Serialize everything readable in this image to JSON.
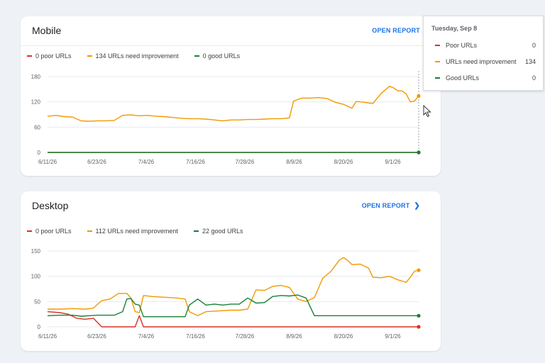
{
  "colors": {
    "poor": "#d93025",
    "improve": "#f29900",
    "good": "#188038",
    "link": "#1a73e8"
  },
  "mobile": {
    "title": "Mobile",
    "open_report": "OPEN REPORT",
    "legend": [
      "0 poor URLs",
      "134 URLs need improvement",
      "0 good URLs"
    ]
  },
  "desktop": {
    "title": "Desktop",
    "open_report": "OPEN REPORT",
    "legend": [
      "0 poor URLs",
      "112 URLs need improvement",
      "22 good URLs"
    ]
  },
  "tooltip": {
    "date": "Tuesday, Sep 8",
    "rows": [
      {
        "label": "Poor URLs",
        "value": "0"
      },
      {
        "label": "URLs need improvement",
        "value": "134"
      },
      {
        "label": "Good URLs",
        "value": "0"
      }
    ]
  },
  "chart_data": [
    {
      "type": "line",
      "title": "Mobile",
      "x_start": "2026-06-11",
      "x_end": "2026-09-08",
      "xticks": [
        "6/11/26",
        "6/23/26",
        "7/4/26",
        "7/16/26",
        "7/28/26",
        "8/9/26",
        "8/20/26",
        "9/1/26"
      ],
      "yticks": [
        0,
        60,
        120,
        180
      ],
      "ylim": [
        0,
        180
      ],
      "series": [
        {
          "name": "Poor URLs",
          "points": [
            [
              "2026-06-11",
              0
            ],
            [
              "2026-09-08",
              0
            ]
          ]
        },
        {
          "name": "URLs need improvement",
          "points": [
            [
              "2026-06-11",
              86
            ],
            [
              "2026-06-13",
              88
            ],
            [
              "2026-06-15",
              85
            ],
            [
              "2026-06-17",
              84
            ],
            [
              "2026-06-19",
              75
            ],
            [
              "2026-06-21",
              74
            ],
            [
              "2026-06-23",
              75
            ],
            [
              "2026-06-25",
              75
            ],
            [
              "2026-06-27",
              76
            ],
            [
              "2026-06-29",
              88
            ],
            [
              "2026-07-01",
              89
            ],
            [
              "2026-07-03",
              87
            ],
            [
              "2026-07-05",
              88
            ],
            [
              "2026-07-07",
              86
            ],
            [
              "2026-07-09",
              85
            ],
            [
              "2026-07-11",
              83
            ],
            [
              "2026-07-13",
              81
            ],
            [
              "2026-07-15",
              80
            ],
            [
              "2026-07-17",
              80
            ],
            [
              "2026-07-19",
              79
            ],
            [
              "2026-07-21",
              77
            ],
            [
              "2026-07-23",
              75
            ],
            [
              "2026-07-25",
              77
            ],
            [
              "2026-07-27",
              77
            ],
            [
              "2026-07-29",
              78
            ],
            [
              "2026-07-31",
              78
            ],
            [
              "2026-08-02",
              79
            ],
            [
              "2026-08-04",
              80
            ],
            [
              "2026-08-06",
              80
            ],
            [
              "2026-08-08",
              82
            ],
            [
              "2026-08-09",
              122
            ],
            [
              "2026-08-11",
              129
            ],
            [
              "2026-08-13",
              129
            ],
            [
              "2026-08-15",
              130
            ],
            [
              "2026-08-17",
              128
            ],
            [
              "2026-08-19",
              119
            ],
            [
              "2026-08-21",
              114
            ],
            [
              "2026-08-23",
              105
            ],
            [
              "2026-08-24",
              121
            ],
            [
              "2026-08-26",
              119
            ],
            [
              "2026-08-28",
              116
            ],
            [
              "2026-08-30",
              140
            ],
            [
              "2026-09-01",
              157
            ],
            [
              "2026-09-02",
              153
            ],
            [
              "2026-09-03",
              146
            ],
            [
              "2026-09-04",
              146
            ],
            [
              "2026-09-05",
              139
            ],
            [
              "2026-09-06",
              120
            ],
            [
              "2026-09-07",
              122
            ],
            [
              "2026-09-08",
              134
            ]
          ]
        },
        {
          "name": "Good URLs",
          "points": [
            [
              "2026-06-11",
              0
            ],
            [
              "2026-09-08",
              0
            ]
          ]
        }
      ]
    },
    {
      "type": "line",
      "title": "Desktop",
      "x_start": "2026-06-11",
      "x_end": "2026-09-08",
      "xticks": [
        "6/11/26",
        "6/23/26",
        "7/4/26",
        "7/16/26",
        "7/28/26",
        "8/9/26",
        "8/20/26",
        "9/1/26"
      ],
      "yticks": [
        0,
        50,
        100,
        150
      ],
      "ylim": [
        0,
        150
      ],
      "series": [
        {
          "name": "Poor URLs",
          "points": [
            [
              "2026-06-11",
              30
            ],
            [
              "2026-06-14",
              28
            ],
            [
              "2026-06-16",
              25
            ],
            [
              "2026-06-18",
              17
            ],
            [
              "2026-06-20",
              15
            ],
            [
              "2026-06-22",
              17
            ],
            [
              "2026-06-24",
              0
            ],
            [
              "2026-07-02",
              0
            ],
            [
              "2026-07-03",
              22
            ],
            [
              "2026-07-04",
              0
            ],
            [
              "2026-09-08",
              0
            ]
          ]
        },
        {
          "name": "URLs need improvement",
          "points": [
            [
              "2026-06-11",
              35
            ],
            [
              "2026-06-14",
              35
            ],
            [
              "2026-06-17",
              36
            ],
            [
              "2026-06-20",
              35
            ],
            [
              "2026-06-22",
              37
            ],
            [
              "2026-06-24",
              52
            ],
            [
              "2026-06-26",
              55
            ],
            [
              "2026-06-28",
              66
            ],
            [
              "2026-06-30",
              66
            ],
            [
              "2026-07-01",
              57
            ],
            [
              "2026-07-02",
              30
            ],
            [
              "2026-07-03",
              28
            ],
            [
              "2026-07-04",
              62
            ],
            [
              "2026-07-06",
              60
            ],
            [
              "2026-07-08",
              59
            ],
            [
              "2026-07-10",
              58
            ],
            [
              "2026-07-12",
              57
            ],
            [
              "2026-07-14",
              55
            ],
            [
              "2026-07-15",
              30
            ],
            [
              "2026-07-17",
              22
            ],
            [
              "2026-07-19",
              30
            ],
            [
              "2026-07-21",
              31
            ],
            [
              "2026-07-23",
              32
            ],
            [
              "2026-07-25",
              33
            ],
            [
              "2026-07-27",
              33
            ],
            [
              "2026-07-29",
              35
            ],
            [
              "2026-07-31",
              73
            ],
            [
              "2026-08-02",
              72
            ],
            [
              "2026-08-04",
              80
            ],
            [
              "2026-08-06",
              82
            ],
            [
              "2026-08-08",
              78
            ],
            [
              "2026-08-10",
              55
            ],
            [
              "2026-08-12",
              50
            ],
            [
              "2026-08-14",
              58
            ],
            [
              "2026-08-16",
              96
            ],
            [
              "2026-08-18",
              110
            ],
            [
              "2026-08-20",
              132
            ],
            [
              "2026-08-21",
              137
            ],
            [
              "2026-08-22",
              131
            ],
            [
              "2026-08-23",
              123
            ],
            [
              "2026-08-25",
              124
            ],
            [
              "2026-08-27",
              116
            ],
            [
              "2026-08-28",
              98
            ],
            [
              "2026-08-30",
              97
            ],
            [
              "2026-09-01",
              100
            ],
            [
              "2026-09-03",
              93
            ],
            [
              "2026-09-05",
              88
            ],
            [
              "2026-09-06",
              98
            ],
            [
              "2026-09-07",
              110
            ],
            [
              "2026-09-08",
              112
            ]
          ]
        },
        {
          "name": "Good URLs",
          "points": [
            [
              "2026-06-11",
              22
            ],
            [
              "2026-06-14",
              23
            ],
            [
              "2026-06-17",
              23
            ],
            [
              "2026-06-19",
              21
            ],
            [
              "2026-06-21",
              22
            ],
            [
              "2026-06-23",
              23
            ],
            [
              "2026-06-25",
              23
            ],
            [
              "2026-06-27",
              23
            ],
            [
              "2026-06-29",
              30
            ],
            [
              "2026-06-30",
              55
            ],
            [
              "2026-07-01",
              56
            ],
            [
              "2026-07-02",
              45
            ],
            [
              "2026-07-03",
              43
            ],
            [
              "2026-07-04",
              20
            ],
            [
              "2026-07-06",
              20
            ],
            [
              "2026-07-10",
              20
            ],
            [
              "2026-07-14",
              20
            ],
            [
              "2026-07-15",
              43
            ],
            [
              "2026-07-17",
              55
            ],
            [
              "2026-07-19",
              43
            ],
            [
              "2026-07-21",
              45
            ],
            [
              "2026-07-23",
              43
            ],
            [
              "2026-07-25",
              45
            ],
            [
              "2026-07-27",
              45
            ],
            [
              "2026-07-29",
              57
            ],
            [
              "2026-07-31",
              47
            ],
            [
              "2026-08-02",
              48
            ],
            [
              "2026-08-04",
              60
            ],
            [
              "2026-08-06",
              62
            ],
            [
              "2026-08-08",
              61
            ],
            [
              "2026-08-10",
              63
            ],
            [
              "2026-08-12",
              57
            ],
            [
              "2026-08-14",
              22
            ],
            [
              "2026-08-16",
              22
            ],
            [
              "2026-08-20",
              22
            ],
            [
              "2026-08-28",
              22
            ],
            [
              "2026-09-08",
              22
            ]
          ]
        }
      ]
    }
  ]
}
